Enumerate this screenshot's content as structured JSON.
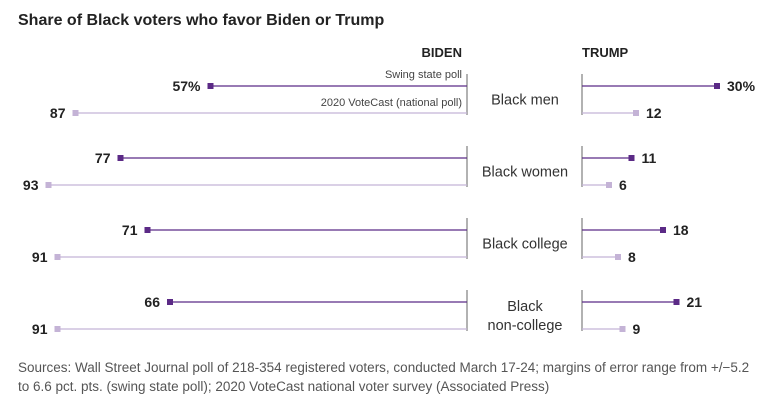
{
  "title": "Share of Black voters who favor Biden or Trump",
  "source": "Sources: Wall Street Journal poll of 218-354 registered voters, conducted March 17-24; margins of error range from +/−5.2 to 6.6 pct. pts. (swing state poll); 2020 VoteCast national voter survey (Associated Press)",
  "chart_data": {
    "type": "bar",
    "title": "Share of Black voters who favor Biden or Trump",
    "columns": [
      "BIDEN",
      "TRUMP"
    ],
    "categories": [
      "Black men",
      "Black women",
      "Black college",
      "Black non-college"
    ],
    "category_lines": [
      [
        "Black men"
      ],
      [
        "Black women"
      ],
      [
        "Black college"
      ],
      [
        "Black",
        "non-college"
      ]
    ],
    "series": [
      {
        "name": "Swing state poll",
        "color": "#5b2a86",
        "biden": [
          57,
          77,
          71,
          66
        ],
        "trump": [
          30,
          11,
          18,
          21
        ],
        "biden_labels": [
          "57%",
          "77",
          "71",
          "66"
        ],
        "trump_labels": [
          "30%",
          "11",
          "18",
          "21"
        ]
      },
      {
        "name": "2020 VoteCast (national poll)",
        "color": "#c4b3d6",
        "biden": [
          87,
          93,
          91,
          91
        ],
        "trump": [
          12,
          6,
          8,
          9
        ],
        "biden_labels": [
          "87",
          "93",
          "91",
          "91"
        ],
        "trump_labels": [
          "12",
          "6",
          "8",
          "9"
        ]
      }
    ]
  }
}
